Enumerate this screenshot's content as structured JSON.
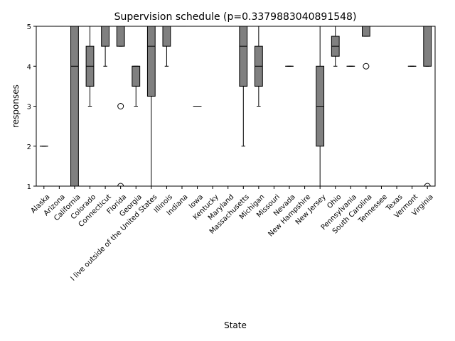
{
  "chart_data": {
    "type": "box",
    "title": "Supervision schedule (p=0.3379883040891548)",
    "xlabel": "State",
    "ylabel": "responses",
    "ylim": [
      1,
      5
    ],
    "yticks": [
      "1",
      "2",
      "3",
      "4",
      "5"
    ],
    "box_color": "#808080",
    "categories": [
      "Alaska",
      "Arizona",
      "California",
      "Colorado",
      "Connecticut",
      "Florida",
      "Georgia",
      "I live outside of the United States",
      "Illinois",
      "Indiana",
      "Iowa",
      "Kentucky",
      "Maryland",
      "Massachusetts",
      "Michigan",
      "Missouri",
      "Nevada",
      "New Hampshire",
      "New Jersey",
      "Ohio",
      "Pennsylvania",
      "South Carolina",
      "Tennessee",
      "Texas",
      "Vermont",
      "Virginia"
    ],
    "boxes": [
      {
        "q1": 2,
        "median": 2,
        "q3": 2,
        "whislo": 2,
        "whishi": 2,
        "fliers": []
      },
      {
        "q1": 5,
        "median": 5,
        "q3": 5,
        "whislo": 5,
        "whishi": 5,
        "fliers": []
      },
      {
        "q1": 1,
        "median": 4,
        "q3": 5,
        "whislo": 1,
        "whishi": 5,
        "fliers": []
      },
      {
        "q1": 3.5,
        "median": 4,
        "q3": 4.5,
        "whislo": 3,
        "whishi": 5,
        "fliers": []
      },
      {
        "q1": 4.5,
        "median": 5,
        "q3": 5,
        "whislo": 4,
        "whishi": 5,
        "fliers": []
      },
      {
        "q1": 4.5,
        "median": 5,
        "q3": 5,
        "whislo": 4.5,
        "whishi": 5,
        "fliers": [
          3,
          1
        ]
      },
      {
        "q1": 3.5,
        "median": 4,
        "q3": 4,
        "whislo": 3,
        "whishi": 4,
        "fliers": []
      },
      {
        "q1": 3.25,
        "median": 4.5,
        "q3": 5,
        "whislo": 1,
        "whishi": 5,
        "fliers": []
      },
      {
        "q1": 4.5,
        "median": 5,
        "q3": 5,
        "whislo": 4,
        "whishi": 5,
        "fliers": []
      },
      {
        "q1": 5,
        "median": 5,
        "q3": 5,
        "whislo": 5,
        "whishi": 5,
        "fliers": []
      },
      {
        "q1": 3,
        "median": 3,
        "q3": 3,
        "whislo": 3,
        "whishi": 3,
        "fliers": []
      },
      {
        "q1": 1,
        "median": 1,
        "q3": 1,
        "whislo": 1,
        "whishi": 1,
        "fliers": []
      },
      {
        "q1": 5,
        "median": 5,
        "q3": 5,
        "whislo": 5,
        "whishi": 5,
        "fliers": []
      },
      {
        "q1": 3.5,
        "median": 4.5,
        "q3": 5,
        "whislo": 2,
        "whishi": 5,
        "fliers": []
      },
      {
        "q1": 3.5,
        "median": 4,
        "q3": 4.5,
        "whislo": 3,
        "whishi": 5,
        "fliers": []
      },
      {
        "q1": 1,
        "median": 1,
        "q3": 1,
        "whislo": 1,
        "whishi": 1,
        "fliers": []
      },
      {
        "q1": 4,
        "median": 4,
        "q3": 4,
        "whislo": 4,
        "whishi": 4,
        "fliers": []
      },
      {
        "q1": 1,
        "median": 1,
        "q3": 1,
        "whislo": 1,
        "whishi": 1,
        "fliers": []
      },
      {
        "q1": 2,
        "median": 3,
        "q3": 4,
        "whislo": 1,
        "whishi": 5,
        "fliers": []
      },
      {
        "q1": 4.25,
        "median": 4.5,
        "q3": 4.75,
        "whislo": 4,
        "whishi": 5,
        "fliers": []
      },
      {
        "q1": 4,
        "median": 4,
        "q3": 4,
        "whislo": 4,
        "whishi": 4,
        "fliers": []
      },
      {
        "q1": 4.75,
        "median": 5,
        "q3": 5,
        "whislo": 4.75,
        "whishi": 5,
        "fliers": [
          4
        ]
      },
      {
        "q1": 5,
        "median": 5,
        "q3": 5,
        "whislo": 5,
        "whishi": 5,
        "fliers": []
      },
      {
        "q1": 1,
        "median": 1,
        "q3": 1,
        "whislo": 1,
        "whishi": 1,
        "fliers": []
      },
      {
        "q1": 4,
        "median": 4,
        "q3": 4,
        "whislo": 4,
        "whishi": 4,
        "fliers": []
      },
      {
        "q1": 4,
        "median": 5,
        "q3": 5,
        "whislo": 4,
        "whishi": 5,
        "fliers": [
          1
        ]
      }
    ]
  }
}
